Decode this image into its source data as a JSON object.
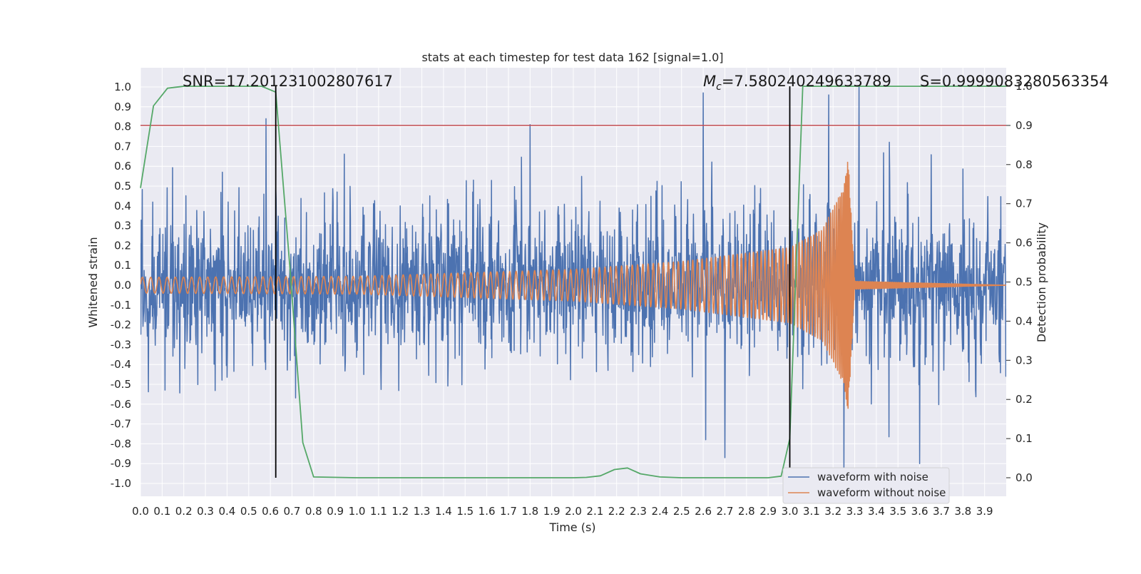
{
  "chart_data": {
    "type": "line",
    "title": "stats at each timestep for test data 162 [signal=1.0]",
    "xlabel": "Time (s)",
    "ylabel": "Whitened strain",
    "y2label": "Detection probability",
    "xlim": [
      0.0,
      4.0
    ],
    "ylim": [
      -1.1,
      1.1
    ],
    "y2lim": [
      -0.05,
      1.0
    ],
    "x_ticks": [
      "0.0",
      "0.1",
      "0.2",
      "0.3",
      "0.4",
      "0.5",
      "0.6",
      "0.7",
      "0.8",
      "0.9",
      "1.0",
      "1.1",
      "1.2",
      "1.3",
      "1.4",
      "1.5",
      "1.6",
      "1.7",
      "1.8",
      "1.9",
      "2.0",
      "2.1",
      "2.2",
      "2.3",
      "2.4",
      "2.5",
      "2.6",
      "2.7",
      "2.8",
      "2.9",
      "3.0",
      "3.1",
      "3.2",
      "3.3",
      "3.4",
      "3.5",
      "3.6",
      "3.7",
      "3.8",
      "3.9"
    ],
    "y_ticks": [
      "1.0",
      "0.9",
      "0.8",
      "0.7",
      "0.6",
      "0.5",
      "0.4",
      "0.3",
      "0.2",
      "0.1",
      "0.0",
      "-0.1",
      "-0.2",
      "-0.3",
      "-0.4",
      "-0.5",
      "-0.6",
      "-0.7",
      "-0.8",
      "-0.9",
      "-1.0"
    ],
    "y2_ticks": [
      "1.0",
      "0.9",
      "0.8",
      "0.7",
      "0.6",
      "0.5",
      "0.4",
      "0.3",
      "0.2",
      "0.1",
      "0.0"
    ],
    "grid": true,
    "legend_position": "bottom-right",
    "annotations": {
      "snr": "SNR=17.201231002807617",
      "mc": "=7.580240249633789",
      "mc_symbol": "M",
      "mc_sub": "c",
      "s": "S=0.9999083280563354"
    },
    "series": [
      {
        "name": "waveform with noise",
        "color": "#4c72b0",
        "description_values": "dense noise fluctuating mostly between -0.6 and 0.6 with spikes up to about +1.0 and -0.95",
        "approx_amplitude": 0.45,
        "spikes": [
          [
            0.58,
            0.84
          ],
          [
            1.8,
            0.81
          ],
          [
            2.6,
            0.97
          ],
          [
            3.18,
            0.96
          ],
          [
            3.32,
            1.0
          ],
          [
            3.25,
            -0.95
          ],
          [
            2.7,
            -0.87
          ],
          [
            3.6,
            -0.9
          ]
        ]
      },
      {
        "name": "waveform without noise",
        "color": "#dd8452",
        "description_values": "chirp oscillation with amplitude 0.04 from t=0 rising to ~0.19 near t=3.0 and peaking ~0.64 at t=3.27 then ringdown to 0",
        "envelope": [
          [
            0.0,
            0.04
          ],
          [
            1.0,
            0.045
          ],
          [
            2.0,
            0.08
          ],
          [
            2.5,
            0.12
          ],
          [
            3.0,
            0.19
          ],
          [
            3.15,
            0.28
          ],
          [
            3.25,
            0.5
          ],
          [
            3.27,
            0.64
          ],
          [
            3.3,
            0.02
          ],
          [
            4.0,
            0.0
          ]
        ]
      },
      {
        "name": "detection probability",
        "color": "#55a868",
        "axis": "right",
        "x": [
          0.0,
          0.06,
          0.125,
          0.2,
          0.3,
          0.45,
          0.56,
          0.625,
          0.69,
          0.75,
          0.8,
          1.0,
          1.5,
          2.0,
          2.06,
          2.125,
          2.19,
          2.25,
          2.31,
          2.4,
          2.5,
          2.9,
          2.96,
          3.0,
          3.06,
          3.2,
          3.5,
          4.0
        ],
        "values": [
          0.74,
          0.95,
          0.995,
          1.0,
          1.0,
          1.0,
          1.0,
          0.985,
          0.54,
          0.09,
          0.002,
          0.0,
          0.0,
          0.0,
          0.001,
          0.005,
          0.021,
          0.025,
          0.01,
          0.002,
          0.0,
          0.0,
          0.004,
          0.1,
          1.0,
          1.0,
          1.0,
          1.0
        ]
      }
    ],
    "reference_lines": {
      "threshold_color": "#c44e52",
      "threshold_y2": 0.9,
      "vertical_lines_x": [
        0.625,
        3.0
      ],
      "vertical_line_color": "#000000"
    }
  }
}
